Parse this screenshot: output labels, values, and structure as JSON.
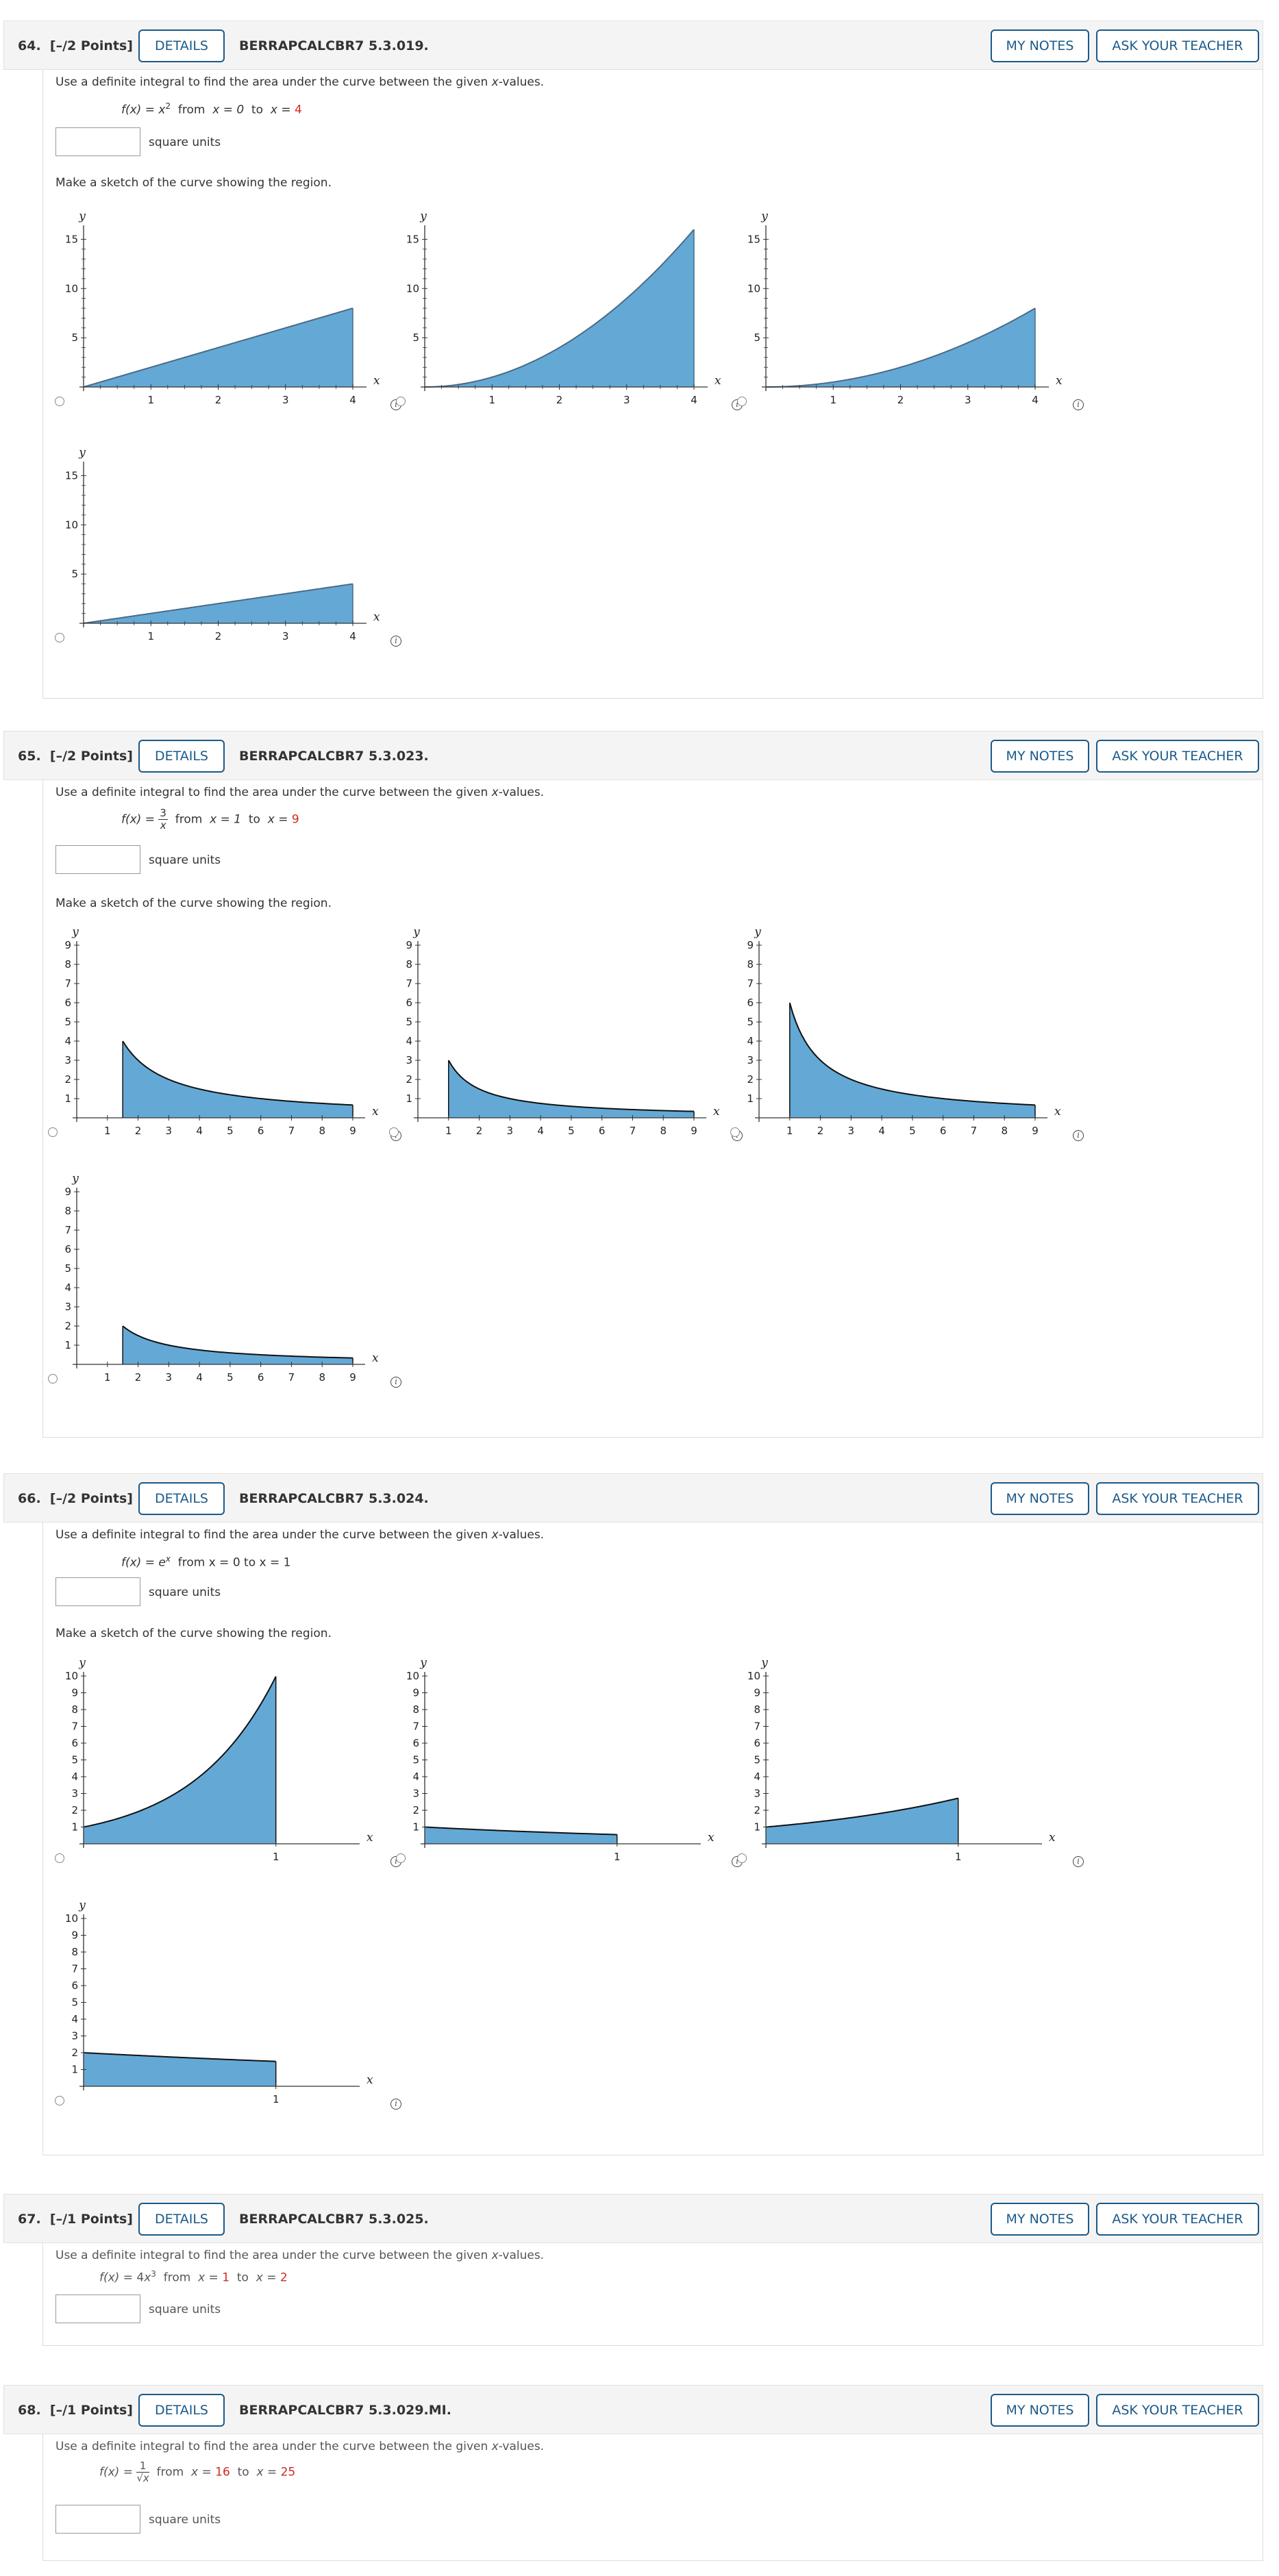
{
  "questions": [
    {
      "number": "64.",
      "points": "[–/2 Points]",
      "details": "DETAILS",
      "code": "BERRAPCALCBR7 5.3.019.",
      "my_notes": "MY NOTES",
      "ask_teacher": "ASK YOUR TEACHER",
      "prompt_pre": "Use a definite integral to find the area under the curve between the given ",
      "prompt_var": "x",
      "prompt_post": "-values.",
      "function_text": "f(x) = x",
      "exponent": "2",
      "from": "from",
      "x_lower_label": "x = 0",
      "to": "to",
      "x_upper_label": "x = ",
      "x_upper_value": "4",
      "units": "square units",
      "sketch_prompt": "Make a sketch of the curve showing the region."
    },
    {
      "number": "65.",
      "points": "[–/2 Points]",
      "details": "DETAILS",
      "code": "BERRAPCALCBR7 5.3.023.",
      "my_notes": "MY NOTES",
      "ask_teacher": "ASK YOUR TEACHER",
      "prompt_pre": "Use a definite integral to find the area under the curve between the given ",
      "prompt_var": "x",
      "prompt_post": "-values.",
      "function_lhs": "f(x) = ",
      "frac_num": "3",
      "frac_den": "x",
      "from": "from",
      "x_lower_label": "x = 1",
      "to": "to",
      "x_upper_label": "x = ",
      "x_upper_value": "9",
      "units": "square units",
      "sketch_prompt": "Make a sketch of the curve showing the region."
    },
    {
      "number": "66.",
      "points": "[–/2 Points]",
      "details": "DETAILS",
      "code": "BERRAPCALCBR7 5.3.024.",
      "my_notes": "MY NOTES",
      "ask_teacher": "ASK YOUR TEACHER",
      "prompt_pre": "Use a definite integral to find the area under the curve between the given ",
      "prompt_var": "x",
      "prompt_post": "-values.",
      "function_text": "f(x) = e",
      "exponent": "x",
      "range_text": "from x = 0 to x = 1",
      "units": "square units",
      "sketch_prompt": "Make a sketch of the curve showing the region."
    },
    {
      "number": "67.",
      "points": "[–/1 Points]",
      "details": "DETAILS",
      "code": "BERRAPCALCBR7 5.3.025.",
      "my_notes": "MY NOTES",
      "ask_teacher": "ASK YOUR TEACHER",
      "prompt_pre": "Use a definite integral to find the area under the curve between the given ",
      "prompt_var": "x",
      "prompt_post": "-values.",
      "function_lhs": "f(x) = ",
      "coef": "4",
      "base": "x",
      "exponent": "3",
      "from": "from",
      "x_lower_label": "x = ",
      "x_lower_value": "1",
      "to": "to",
      "x_upper_label": "x = ",
      "x_upper_value": "2",
      "units": "square units"
    },
    {
      "number": "68.",
      "points": "[–/1 Points]",
      "details": "DETAILS",
      "code": "BERRAPCALCBR7 5.3.029.MI.",
      "my_notes": "MY NOTES",
      "ask_teacher": "ASK YOUR TEACHER",
      "prompt_pre": "Use a definite integral to find the area under the curve between the given ",
      "prompt_var": "x",
      "prompt_post": "-values.",
      "function_lhs": "f(x) = ",
      "frac_num": "1",
      "frac_den": "√x",
      "from": "from",
      "x_lower_label": "x = ",
      "x_lower_value": "16",
      "to": "to",
      "x_upper_label": "x = ",
      "x_upper_value": "25",
      "units": "square units"
    }
  ],
  "chart_data": [
    {
      "question": "64",
      "option": 1,
      "type": "area",
      "function": "2x",
      "xlim": [
        0,
        4
      ],
      "ylim": [
        0,
        16
      ],
      "xticks": [
        "1",
        "2",
        "3",
        "4"
      ],
      "yticks": [
        "5",
        "10",
        "15"
      ],
      "xlabel": "x",
      "ylabel": "y"
    },
    {
      "question": "64",
      "option": 2,
      "type": "area",
      "function": "x^2",
      "xlim": [
        0,
        4
      ],
      "ylim": [
        0,
        16
      ],
      "xticks": [
        "1",
        "2",
        "3",
        "4"
      ],
      "yticks": [
        "5",
        "10",
        "15"
      ],
      "xlabel": "x",
      "ylabel": "y"
    },
    {
      "question": "64",
      "option": 3,
      "type": "area",
      "function": "x^2/2",
      "xlim": [
        0,
        4
      ],
      "ylim": [
        0,
        16
      ],
      "xticks": [
        "1",
        "2",
        "3",
        "4"
      ],
      "yticks": [
        "5",
        "10",
        "15"
      ],
      "xlabel": "x",
      "ylabel": "y"
    },
    {
      "question": "64",
      "option": 4,
      "type": "area",
      "function": "x",
      "xlim": [
        0,
        4
      ],
      "ylim": [
        0,
        16
      ],
      "xticks": [
        "1",
        "2",
        "3",
        "4"
      ],
      "yticks": [
        "5",
        "10",
        "15"
      ],
      "xlabel": "x",
      "ylabel": "y"
    },
    {
      "question": "65",
      "option": 1,
      "type": "area",
      "function": "6/x",
      "xlim": [
        0,
        9
      ],
      "ylim": [
        0,
        9
      ],
      "fill_from": 1.5,
      "fill_to": 9,
      "xticks": [
        "1",
        "2",
        "3",
        "4",
        "5",
        "6",
        "7",
        "8",
        "9"
      ],
      "yticks": [
        "1",
        "2",
        "3",
        "4",
        "5",
        "6",
        "7",
        "8",
        "9"
      ],
      "xlabel": "x",
      "ylabel": "y"
    },
    {
      "question": "65",
      "option": 2,
      "type": "area",
      "function": "3/x",
      "xlim": [
        0,
        9
      ],
      "ylim": [
        0,
        9
      ],
      "fill_from": 1,
      "fill_to": 9,
      "xticks": [
        "1",
        "2",
        "3",
        "4",
        "5",
        "6",
        "7",
        "8",
        "9"
      ],
      "yticks": [
        "1",
        "2",
        "3",
        "4",
        "5",
        "6",
        "7",
        "8",
        "9"
      ],
      "xlabel": "x",
      "ylabel": "y"
    },
    {
      "question": "65",
      "option": 3,
      "type": "area",
      "function": "6/x",
      "xlim": [
        0,
        9
      ],
      "ylim": [
        0,
        9
      ],
      "fill_from": 1,
      "fill_to": 9,
      "xticks": [
        "1",
        "2",
        "3",
        "4",
        "5",
        "6",
        "7",
        "8",
        "9"
      ],
      "yticks": [
        "1",
        "2",
        "3",
        "4",
        "5",
        "6",
        "7",
        "8",
        "9"
      ],
      "xlabel": "x",
      "ylabel": "y"
    },
    {
      "question": "65",
      "option": 4,
      "type": "area",
      "function": "3/x",
      "xlim": [
        0,
        9
      ],
      "ylim": [
        0,
        9
      ],
      "fill_from": 1.5,
      "fill_to": 9,
      "xticks": [
        "1",
        "2",
        "3",
        "4",
        "5",
        "6",
        "7",
        "8",
        "9"
      ],
      "yticks": [
        "1",
        "2",
        "3",
        "4",
        "5",
        "6",
        "7",
        "8",
        "9"
      ],
      "xlabel": "x",
      "ylabel": "y"
    },
    {
      "question": "66",
      "option": 1,
      "type": "area",
      "function": "e^(2.3x)",
      "xlim": [
        0,
        1.4
      ],
      "ylim": [
        0,
        10
      ],
      "xticks": [
        "1"
      ],
      "yticks": [
        "1",
        "2",
        "3",
        "4",
        "5",
        "6",
        "7",
        "8",
        "9",
        "10"
      ],
      "xlabel": "x",
      "ylabel": "y"
    },
    {
      "question": "66",
      "option": 2,
      "type": "area",
      "function": "e^(-0.6x)",
      "xlim": [
        0,
        1.4
      ],
      "ylim": [
        0,
        10
      ],
      "xticks": [
        "1"
      ],
      "yticks": [
        "1",
        "2",
        "3",
        "4",
        "5",
        "6",
        "7",
        "8",
        "9",
        "10"
      ],
      "xlabel": "x",
      "ylabel": "y"
    },
    {
      "question": "66",
      "option": 3,
      "type": "area",
      "function": "e^x",
      "xlim": [
        0,
        1.4
      ],
      "ylim": [
        0,
        10
      ],
      "xticks": [
        "1"
      ],
      "yticks": [
        "1",
        "2",
        "3",
        "4",
        "5",
        "6",
        "7",
        "8",
        "9",
        "10"
      ],
      "xlabel": "x",
      "ylabel": "y"
    },
    {
      "question": "66",
      "option": 4,
      "type": "area",
      "function": "2e^(-0.3x)",
      "xlim": [
        0,
        1.4
      ],
      "ylim": [
        0,
        10
      ],
      "xticks": [
        "1"
      ],
      "yticks": [
        "1",
        "2",
        "3",
        "4",
        "5",
        "6",
        "7",
        "8",
        "9",
        "10"
      ],
      "xlabel": "x",
      "ylabel": "y"
    }
  ]
}
